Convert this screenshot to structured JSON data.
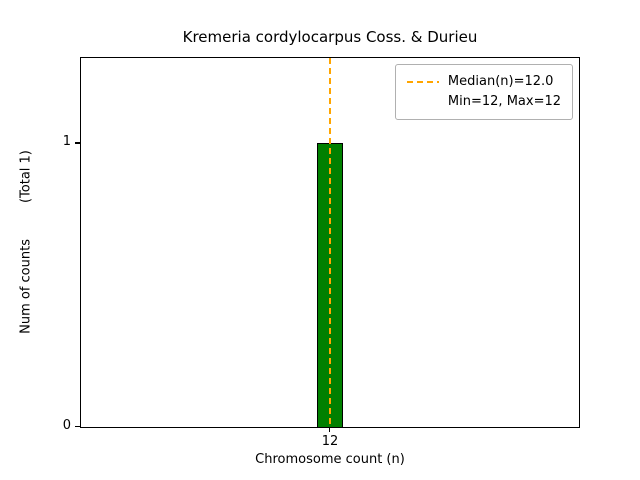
{
  "chart_data": {
    "type": "bar",
    "title": "Kremeria cordylocarpus Coss. & Durieu",
    "xlabel": "Chromosome count (n)",
    "ylabel": "Num of counts",
    "ylabel_note": "(Total 1)",
    "categories": [
      12
    ],
    "values": [
      1
    ],
    "total_counts": 1,
    "ylim": [
      0,
      1.3
    ],
    "yticks": [
      0,
      1
    ],
    "xtick_labels": [
      "12"
    ],
    "bar_color": "#008000",
    "bar_edge_color": "#000000",
    "median": {
      "value": 12.0,
      "line_color": "#FFA500",
      "line_style": "dashed"
    },
    "min": 12,
    "max": 12,
    "grid": false,
    "legend": {
      "position": "upper right",
      "entries": [
        {
          "label": "Median(n)=12.0",
          "line_color": "#FFA500",
          "line_style": "dashed"
        },
        {
          "label": "Min=12, Max=12",
          "line_color": null,
          "line_style": null
        }
      ]
    }
  }
}
